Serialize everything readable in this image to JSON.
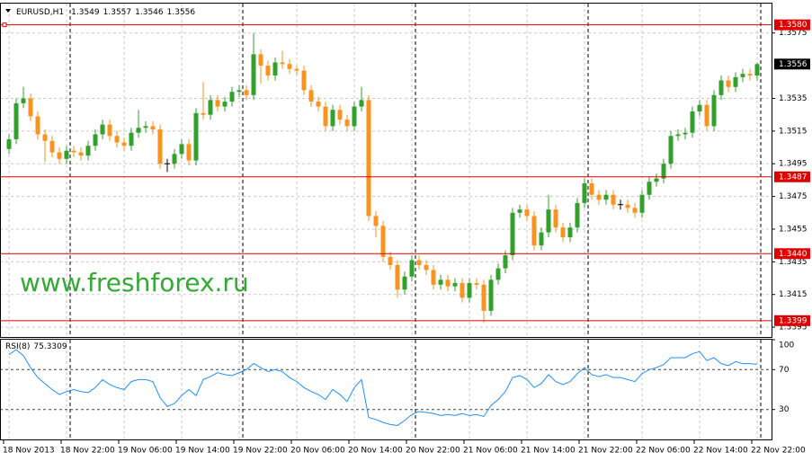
{
  "chart_data": {
    "type": "candlestick",
    "symbol": "EURUSD,H1",
    "categories": [
      "18 Nov 2013",
      null,
      null,
      null,
      null,
      null,
      null,
      null,
      "18 Nov 22:00",
      null,
      null,
      null,
      null,
      null,
      null,
      null,
      "19 Nov 06:00",
      null,
      null,
      null,
      null,
      null,
      null,
      null,
      "19 Nov 14:00",
      null,
      null,
      null,
      null,
      null,
      null,
      null,
      "19 Nov 22:00",
      null,
      null,
      null,
      null,
      null,
      null,
      null,
      "20 Nov 06:00",
      null,
      null,
      null,
      null,
      null,
      null,
      null,
      "20 Nov 14:00",
      null,
      null,
      null,
      null,
      null,
      null,
      null,
      "20 Nov 22:00",
      null,
      null,
      null,
      null,
      null,
      null,
      null,
      "21 Nov 06:00",
      null,
      null,
      null,
      null,
      null,
      null,
      null,
      "21 Nov 14:00",
      null,
      null,
      null,
      null,
      null,
      null,
      null,
      "21 Nov 22:00",
      null,
      null,
      null,
      null,
      null,
      null,
      null,
      "22 Nov 06:00",
      null,
      null,
      null,
      null,
      null,
      null,
      null,
      "22 Nov 14:00",
      null,
      null,
      null,
      null,
      null,
      null,
      null,
      "22 Nov 22:00"
    ],
    "open": [
      1.3504,
      1.351,
      1.3532,
      1.3535,
      1.3524,
      1.3513,
      1.3509,
      1.3502,
      1.3498,
      1.3503,
      1.3502,
      1.35,
      1.3506,
      1.3513,
      1.3519,
      1.3512,
      1.3508,
      1.3506,
      1.3514,
      1.3517,
      1.3518,
      1.3516,
      1.3495,
      1.3495,
      1.3501,
      1.3507,
      1.3497,
      1.3526,
      1.3525,
      1.3534,
      1.353,
      1.3533,
      1.3539,
      1.354,
      1.3537,
      1.3562,
      1.3555,
      1.3549,
      1.3557,
      1.3556,
      1.3553,
      1.3552,
      1.354,
      1.3533,
      1.353,
      1.3518,
      1.3528,
      1.3522,
      1.3518,
      1.353,
      1.3534,
      1.3463,
      1.3457,
      1.3438,
      1.3433,
      1.3418,
      1.3426,
      1.3436,
      1.3433,
      1.343,
      1.3421,
      1.3424,
      1.342,
      1.3422,
      1.3413,
      1.3422,
      1.3421,
      1.3405,
      1.3424,
      1.3431,
      1.3439,
      1.3465,
      1.3467,
      1.3463,
      1.3445,
      1.3453,
      1.3467,
      1.3456,
      1.345,
      1.3456,
      1.3471,
      1.3483,
      1.3476,
      1.3473,
      1.3476,
      1.347,
      1.347,
      1.3468,
      1.3465,
      1.3476,
      1.3484,
      1.3486,
      1.3495,
      1.3512,
      1.3513,
      1.3514,
      1.3527,
      1.3531,
      1.3518,
      1.3537,
      1.3546,
      1.3542,
      1.3548,
      1.355,
      1.3549
    ],
    "high": [
      1.3513,
      1.3535,
      1.3542,
      1.3538,
      1.3527,
      1.3516,
      1.3512,
      1.3505,
      1.3506,
      1.3506,
      1.3505,
      1.3509,
      1.3516,
      1.3522,
      1.3522,
      1.3515,
      1.3511,
      1.3517,
      1.3528,
      1.3521,
      1.3521,
      1.3519,
      1.3498,
      1.3504,
      1.351,
      1.351,
      1.3529,
      1.3545,
      1.3537,
      1.3537,
      1.3536,
      1.3542,
      1.3543,
      1.3543,
      1.3575,
      1.3565,
      1.3558,
      1.356,
      1.3564,
      1.3559,
      1.3555,
      1.3555,
      1.3543,
      1.3536,
      1.3533,
      1.3531,
      1.3531,
      1.3525,
      1.3533,
      1.3542,
      1.3537,
      1.3466,
      1.346,
      1.3441,
      1.3436,
      1.3429,
      1.3439,
      1.3439,
      1.3436,
      1.3433,
      1.3427,
      1.3427,
      1.3425,
      1.3425,
      1.3425,
      1.3425,
      1.3424,
      1.3427,
      1.3434,
      1.3442,
      1.3468,
      1.347,
      1.347,
      1.3466,
      1.3456,
      1.3476,
      1.347,
      1.3459,
      1.3459,
      1.3474,
      1.3486,
      1.3486,
      1.3479,
      1.3479,
      1.3479,
      1.3473,
      1.3473,
      1.3471,
      1.3479,
      1.3487,
      1.3489,
      1.3498,
      1.3515,
      1.3516,
      1.3517,
      1.353,
      1.3534,
      1.3534,
      1.354,
      1.3549,
      1.3549,
      1.3551,
      1.3553,
      1.3553,
      1.3557
    ],
    "low": [
      1.3501,
      1.3507,
      1.3529,
      1.3521,
      1.351,
      1.3496,
      1.3499,
      1.3495,
      1.3495,
      1.3499,
      1.3497,
      1.3497,
      1.3503,
      1.351,
      1.3509,
      1.3505,
      1.3503,
      1.3503,
      1.3511,
      1.3514,
      1.3513,
      1.3492,
      1.349,
      1.3492,
      1.3498,
      1.3494,
      1.3494,
      1.3522,
      1.3522,
      1.3527,
      1.3527,
      1.353,
      1.3536,
      1.3534,
      1.3534,
      1.3544,
      1.3546,
      1.3546,
      1.3553,
      1.355,
      1.3549,
      1.3537,
      1.353,
      1.3527,
      1.3515,
      1.3515,
      1.3519,
      1.3515,
      1.3515,
      1.3527,
      1.346,
      1.345,
      1.3435,
      1.343,
      1.3413,
      1.3415,
      1.3423,
      1.343,
      1.3427,
      1.3418,
      1.3418,
      1.3417,
      1.3417,
      1.341,
      1.341,
      1.3418,
      1.3398,
      1.3402,
      1.3421,
      1.3428,
      1.3436,
      1.3462,
      1.346,
      1.3442,
      1.3442,
      1.345,
      1.3453,
      1.3447,
      1.3447,
      1.3453,
      1.3468,
      1.3473,
      1.347,
      1.347,
      1.3467,
      1.3467,
      1.3465,
      1.3462,
      1.3462,
      1.3473,
      1.3481,
      1.3483,
      1.3492,
      1.3509,
      1.351,
      1.3511,
      1.3524,
      1.3515,
      1.3515,
      1.3534,
      1.3539,
      1.3539,
      1.3545,
      1.3546,
      1.3546
    ],
    "close": [
      1.351,
      1.3532,
      1.3535,
      1.3524,
      1.3513,
      1.3509,
      1.3502,
      1.3498,
      1.3503,
      1.3502,
      1.35,
      1.3506,
      1.3513,
      1.3519,
      1.3512,
      1.3508,
      1.3506,
      1.3514,
      1.3517,
      1.3518,
      1.3516,
      1.3495,
      1.3495,
      1.3501,
      1.3507,
      1.3497,
      1.3526,
      1.3525,
      1.3534,
      1.353,
      1.3533,
      1.3539,
      1.354,
      1.3537,
      1.3562,
      1.3555,
      1.3549,
      1.3557,
      1.3556,
      1.3553,
      1.3552,
      1.354,
      1.3533,
      1.353,
      1.3518,
      1.3528,
      1.3522,
      1.3518,
      1.353,
      1.3534,
      1.3463,
      1.3457,
      1.3438,
      1.3433,
      1.3418,
      1.3426,
      1.3436,
      1.3433,
      1.343,
      1.3421,
      1.3424,
      1.342,
      1.3422,
      1.3413,
      1.3422,
      1.3421,
      1.3405,
      1.3424,
      1.3431,
      1.3439,
      1.3465,
      1.3467,
      1.3463,
      1.3445,
      1.3453,
      1.3467,
      1.3456,
      1.345,
      1.3456,
      1.3471,
      1.3483,
      1.3476,
      1.3473,
      1.3476,
      1.347,
      1.347,
      1.3468,
      1.3465,
      1.3476,
      1.3484,
      1.3486,
      1.3495,
      1.3512,
      1.3513,
      1.3514,
      1.3527,
      1.3531,
      1.3518,
      1.3537,
      1.3546,
      1.3542,
      1.3548,
      1.355,
      1.3549,
      1.3556
    ],
    "up_color": "#33a02c",
    "down_color": "#f7931e",
    "doji_color": "#000000",
    "ylim": [
      1.3389,
      1.3593
    ],
    "yticks": [
      1.3575,
      1.3535,
      1.3515,
      1.3495,
      1.3475,
      1.3455,
      1.3435,
      1.3415,
      1.3395
    ],
    "grid": true,
    "levels": [
      {
        "value": 1.358,
        "label": "1.3580"
      },
      1.3487,
      {
        "value": 1.344,
        "label": "1.3440"
      },
      1.3399
    ],
    "level_color": "#e00000",
    "watermark": "www.freshforex.ru",
    "watermark_color": "#33aa33",
    "indicator": {
      "type": "line",
      "name": "RSI(8)",
      "color": "#1e90ff",
      "values": [
        85,
        90,
        84,
        72,
        62,
        56,
        50,
        45,
        48,
        50,
        48,
        47,
        52,
        60,
        55,
        52,
        50,
        58,
        60,
        60,
        58,
        42,
        33,
        36,
        44,
        50,
        44,
        60,
        63,
        67,
        65,
        64,
        67,
        70,
        76,
        72,
        68,
        70,
        68,
        62,
        58,
        52,
        48,
        45,
        40,
        50,
        45,
        38,
        52,
        60,
        22,
        20,
        17,
        15,
        14,
        19,
        25,
        28,
        27,
        26,
        24,
        25,
        24,
        26,
        24,
        25,
        23,
        34,
        40,
        48,
        62,
        64,
        60,
        52,
        56,
        65,
        58,
        55,
        58,
        66,
        72,
        65,
        63,
        65,
        62,
        62,
        60,
        58,
        66,
        70,
        72,
        75,
        82,
        82,
        82,
        86,
        88,
        79,
        82,
        76,
        74,
        78,
        76,
        76,
        75.3309
      ],
      "ylim": [
        0,
        100
      ],
      "yticks": [
        30,
        70,
        100
      ],
      "levels": [
        30,
        70
      ]
    }
  }
}
